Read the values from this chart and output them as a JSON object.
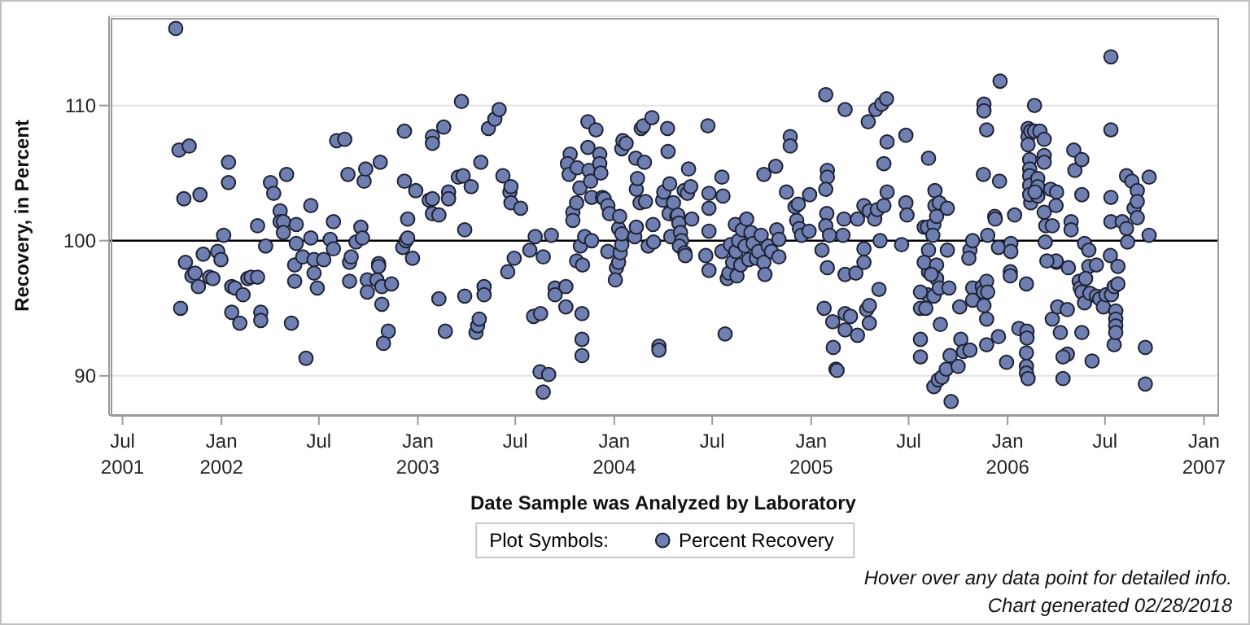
{
  "chart_data": {
    "type": "scatter",
    "xlabel": "Date Sample was Analyzed by Laboratory",
    "ylabel": "Recovery, in Percent",
    "legend_title": "Plot Symbols:",
    "legend": "bottom",
    "grid": "y",
    "marker": "circle",
    "annotations": [
      "Hover over any data point for detailed info.",
      "Chart generated 02/28/2018"
    ],
    "xlim": [
      "2001-06-06",
      "2007-01-26"
    ],
    "xticks": [
      {
        "value": "2001-07-01",
        "label": "Jul\n2001"
      },
      {
        "value": "2002-01-01",
        "label": "Jan\n2002"
      },
      {
        "value": "2002-07-01",
        "label": "Jul"
      },
      {
        "value": "2003-01-01",
        "label": "Jan\n2003"
      },
      {
        "value": "2003-07-01",
        "label": "Jul"
      },
      {
        "value": "2004-01-01",
        "label": "Jan\n2004"
      },
      {
        "value": "2004-07-01",
        "label": "Jul"
      },
      {
        "value": "2005-01-01",
        "label": "Jan\n2005"
      },
      {
        "value": "2005-07-01",
        "label": "Jul"
      },
      {
        "value": "2006-01-01",
        "label": "Jan\n2006"
      },
      {
        "value": "2006-07-01",
        "label": "Jul"
      },
      {
        "value": "2007-01-01",
        "label": "Jan\n2007"
      }
    ],
    "ylim": [
      87.1,
      116.6
    ],
    "yticks": [
      90,
      100,
      110
    ],
    "ref_lines": [
      {
        "axis": "y",
        "value": 100,
        "color": "#000000"
      }
    ],
    "x": [
      "2001-10-08",
      "2001-10-14",
      "2001-11-02",
      "2001-10-23",
      "2001-11-22",
      "2001-10-26",
      "2001-10-17",
      "2001-11-07",
      "2001-11-13",
      "2001-11-19",
      "2001-11-28",
      "2001-12-10",
      "2001-12-16",
      "2001-12-25",
      "2001-12-31",
      "2002-01-05",
      "2002-01-14",
      "2002-01-14",
      "2002-01-20",
      "2002-01-20",
      "2002-01-26",
      "2002-02-04",
      "2002-02-10",
      "2002-02-19",
      "2002-02-25",
      "2002-03-09",
      "2002-03-09",
      "2002-03-15",
      "2002-03-15",
      "2002-03-24",
      "2002-04-02",
      "2002-04-08",
      "2002-04-20",
      "2002-04-20",
      "2002-04-26",
      "2002-04-26",
      "2002-05-02",
      "2002-05-11",
      "2002-05-17",
      "2002-05-17",
      "2002-05-20",
      "2002-05-20",
      "2002-06-01",
      "2002-06-07",
      "2002-06-16",
      "2002-06-16",
      "2002-06-22",
      "2002-06-22",
      "2002-06-28",
      "2002-07-10",
      "2002-07-22",
      "2002-07-28",
      "2002-07-28",
      "2002-08-03",
      "2002-08-18",
      "2002-08-24",
      "2002-08-27",
      "2002-08-30",
      "2002-08-27",
      "2002-09-08",
      "2002-09-17",
      "2002-09-20",
      "2002-09-23",
      "2002-09-26",
      "2002-09-29",
      "2002-09-29",
      "2002-10-17",
      "2002-10-20",
      "2002-10-20",
      "2002-10-23",
      "2002-10-26",
      "2002-10-26",
      "2002-11-07",
      "2002-10-29",
      "2002-11-13",
      "2002-12-07",
      "2002-12-07",
      "2002-12-04",
      "2002-12-10",
      "2002-12-13",
      "2002-12-13",
      "2002-12-22",
      "2002-12-28",
      "2003-01-22",
      "2003-01-28",
      "2003-01-28",
      "2003-01-28",
      "2003-01-28",
      "2003-02-09",
      "2003-02-09",
      "2003-02-18",
      "2003-02-21",
      "2003-02-27",
      "2003-02-27",
      "2003-03-17",
      "2003-03-26",
      "2003-03-23",
      "2003-03-29",
      "2003-03-29",
      "2003-04-10",
      "2003-04-19",
      "2003-04-22",
      "2003-04-25",
      "2003-04-28",
      "2003-05-04",
      "2003-05-04",
      "2003-05-12",
      "2003-05-24",
      "2003-06-01",
      "2003-06-08",
      "2003-06-21",
      "2003-06-23",
      "2003-06-23",
      "2003-07-11",
      "2003-06-17",
      "2003-06-29",
      "2003-07-28",
      "2003-08-07",
      "2003-08-22",
      "2003-09-06",
      "2003-08-04",
      "2003-08-17",
      "2003-08-16",
      "2003-09-01",
      "2003-08-22",
      "2003-09-13",
      "2003-09-13",
      "2003-10-03",
      "2003-10-03",
      "2003-10-11",
      "2003-10-06",
      "2003-10-09",
      "2003-10-16",
      "2003-10-16",
      "2003-10-23",
      "2003-10-24",
      "2003-10-29",
      "2003-10-23",
      "2003-11-03",
      "2003-10-30",
      "2003-11-07",
      "2003-11-02",
      "2003-11-02",
      "2003-11-02",
      "2003-11-13",
      "2003-11-28",
      "2003-11-13",
      "2003-11-15",
      "2003-11-18",
      "2003-11-20",
      "2003-11-20",
      "2003-12-05",
      "2003-12-05",
      "2003-12-07",
      "2003-12-10",
      "2003-12-13",
      "2003-12-20",
      "2003-12-23",
      "2003-12-20",
      "2004-01-05",
      "2004-01-03",
      "2004-01-09",
      "2004-01-12",
      "2004-01-15",
      "2004-01-09",
      "2004-01-15",
      "2004-01-11",
      "2004-01-15",
      "2004-01-17",
      "2004-01-23",
      "2004-02-08",
      "2004-02-11",
      "2004-02-11",
      "2004-02-13",
      "2004-02-10",
      "2004-02-20",
      "2004-02-24",
      "2004-02-18",
      "2004-02-26",
      "2004-02-28",
      "2004-03-04",
      "2004-03-11",
      "2004-03-13",
      "2004-03-14",
      "2004-03-31",
      "2004-04-02",
      "2004-04-09",
      "2004-04-10",
      "2004-04-12",
      "2004-04-15",
      "2004-04-13",
      "2004-04-20",
      "2004-04-26",
      "2004-04-28",
      "2004-04-30",
      "2004-05-03",
      "2004-05-05",
      "2004-05-01",
      "2004-05-10",
      "2004-05-11",
      "2004-05-16",
      "2004-05-18",
      "2004-05-22",
      "2004-05-24",
      "2004-05-12",
      "2004-03-24",
      "2004-03-24",
      "2004-06-19",
      "2004-06-23",
      "2004-06-25",
      "2004-06-25",
      "2004-06-25",
      "2004-06-25",
      "2004-07-19",
      "2004-07-21",
      "2004-07-19",
      "2004-07-25",
      "2004-07-29",
      "2004-08-01",
      "2004-08-04",
      "2004-08-08",
      "2004-08-13",
      "2004-08-14",
      "2004-08-16",
      "2004-08-19",
      "2004-08-23",
      "2004-08-26",
      "2004-08-31",
      "2004-09-03",
      "2004-09-07",
      "2004-09-11",
      "2004-09-15",
      "2004-09-21",
      "2004-09-25",
      "2004-09-30",
      "2004-10-05",
      "2004-10-07",
      "2004-10-13",
      "2004-10-19",
      "2004-10-05",
      "2004-10-27",
      "2004-10-29",
      "2004-11-02",
      "2004-11-02",
      "2004-11-16",
      "2004-11-23",
      "2004-11-23",
      "2004-12-02",
      "2004-12-05",
      "2004-12-08",
      "2004-12-10",
      "2004-12-14",
      "2004-12-28",
      "2004-12-29",
      "2005-01-21",
      "2005-01-25",
      "2005-01-28",
      "2005-01-31",
      "2005-01-31",
      "2005-01-28",
      "2005-01-30",
      "2005-01-28",
      "2005-02-04",
      "2005-01-31",
      "2005-02-10",
      "2005-02-11",
      "2005-02-16",
      "2005-02-18",
      "2005-03-05",
      "2005-03-03",
      "2005-03-01",
      "2005-03-05",
      "2005-03-05",
      "2005-03-05",
      "2005-03-15",
      "2005-03-25",
      "2005-04-09",
      "2005-04-09",
      "2005-04-09",
      "2005-03-28",
      "2005-03-28",
      "2005-04-14",
      "2005-04-19",
      "2005-04-19",
      "2005-04-19",
      "2005-04-29",
      "2005-05-04",
      "2005-05-16",
      "2005-05-16",
      "2005-05-22",
      "2005-05-22",
      "2005-05-09",
      "2005-04-17",
      "2005-05-01",
      "2005-05-12",
      "2005-05-21",
      "2005-05-07",
      "2005-06-18",
      "2005-06-26",
      "2005-06-26",
      "2005-06-28",
      "2005-08-07",
      "2005-08-07",
      "2005-08-07",
      "2005-07-30",
      "2005-07-30",
      "2005-08-05",
      "2005-08-05",
      "2005-08-17",
      "2005-08-17",
      "2005-08-17",
      "2005-08-19",
      "2005-08-19",
      "2005-08-22",
      "2005-08-22",
      "2005-08-22",
      "2005-08-27",
      "2005-08-27",
      "2005-09-11",
      "2005-09-11",
      "2005-08-15",
      "2005-08-12",
      "2005-07-23",
      "2005-07-23",
      "2005-07-23",
      "2005-07-23",
      "2005-08-02",
      "2005-09-14",
      "2005-08-29",
      "2005-10-04",
      "2005-08-25",
      "2005-09-01",
      "2005-09-09",
      "2005-09-18",
      "2005-10-01",
      "2005-10-06",
      "2005-09-16",
      "2005-10-11",
      "2005-10-23",
      "2005-10-23",
      "2005-10-21",
      "2005-10-28",
      "2005-10-28",
      "2005-10-28",
      "2005-11-15",
      "2005-11-17",
      "2005-11-17",
      "2005-11-18",
      "2005-11-18",
      "2005-11-18",
      "2005-11-23",
      "2005-11-23",
      "2005-11-23",
      "2005-11-23",
      "2005-11-25",
      "2005-11-25",
      "2005-12-08",
      "2005-12-09",
      "2005-12-17",
      "2005-12-18",
      "2005-12-15",
      "2005-12-15",
      "2005-12-30",
      "2006-01-07",
      "2006-01-07",
      "2006-01-06",
      "2006-01-06",
      "2006-01-14",
      "2006-01-22",
      "2006-02-05",
      "2006-02-05",
      "2006-02-05",
      "2006-02-06",
      "2006-02-06",
      "2006-02-05",
      "2006-02-08",
      "2006-02-08",
      "2006-02-08",
      "2006-02-08",
      "2006-02-13",
      "2006-02-13",
      "2006-02-20",
      "2006-02-20",
      "2006-03-02",
      "2006-03-10",
      "2006-03-10",
      "2006-03-10",
      "2006-03-10",
      "2006-02-11",
      "2006-02-11",
      "2006-02-11",
      "2006-02-11",
      "2006-02-11",
      "2006-02-26",
      "2006-02-26",
      "2006-02-26",
      "2006-02-21",
      "2006-03-12",
      "2006-03-13",
      "2006-03-25",
      "2006-03-25",
      "2006-03-22",
      "2006-04-02",
      "2006-04-02",
      "2006-04-01",
      "2006-04-01",
      "2006-03-15",
      "2006-04-04",
      "2006-04-09",
      "2006-04-22",
      "2006-04-22",
      "2006-04-14",
      "2006-04-14",
      "2006-04-24",
      "2006-04-29",
      "2006-04-29",
      "2006-05-04",
      "2006-05-06",
      "2006-05-19",
      "2006-05-19",
      "2006-05-19",
      "2006-05-24",
      "2006-06-01",
      "2006-06-01",
      "2006-06-15",
      "2006-06-07",
      "2006-05-14",
      "2006-05-16",
      "2006-05-19",
      "2006-05-24",
      "2006-05-26",
      "2006-06-03",
      "2006-06-15",
      "2006-06-21",
      "2006-06-28",
      "2006-07-03",
      "2006-07-11",
      "2006-07-13",
      "2006-07-18",
      "2006-07-18",
      "2006-07-21",
      "2006-07-21",
      "2006-07-21",
      "2006-07-21",
      "2006-07-25",
      "2006-07-25",
      "2006-07-12",
      "2006-07-12",
      "2006-07-12",
      "2006-07-12",
      "2006-08-02",
      "2006-08-10",
      "2006-08-10",
      "2006-08-12",
      "2006-08-20",
      "2006-08-24",
      "2006-08-30",
      "2006-08-30",
      "2006-08-30",
      "2006-09-14",
      "2006-09-14",
      "2006-09-21",
      "2006-09-21"
    ],
    "series": [
      {
        "name": "Percent Recovery",
        "color": "#6f7fb2",
        "values": [
          115.7,
          106.7,
          107.0,
          103.1,
          103.4,
          98.4,
          95.0,
          97.4,
          97.6,
          96.6,
          99.0,
          97.3,
          97.2,
          99.2,
          98.6,
          100.4,
          105.8,
          104.3,
          96.6,
          94.7,
          96.5,
          93.9,
          96.0,
          97.2,
          97.3,
          97.3,
          101.1,
          94.7,
          94.1,
          99.6,
          104.3,
          103.5,
          102.2,
          101.4,
          101.4,
          100.6,
          104.9,
          93.9,
          98.2,
          97.0,
          101.2,
          99.8,
          98.8,
          91.3,
          102.6,
          100.2,
          98.6,
          97.6,
          96.5,
          98.6,
          100.1,
          101.4,
          99.4,
          107.4,
          107.5,
          104.9,
          98.4,
          98.8,
          97.0,
          99.9,
          101.0,
          100.2,
          104.4,
          105.3,
          97.1,
          96.2,
          97.1,
          98.3,
          98.1,
          105.8,
          96.6,
          95.3,
          93.3,
          92.4,
          96.8,
          108.1,
          104.4,
          99.5,
          100.0,
          101.6,
          100.2,
          98.7,
          103.7,
          103.0,
          107.7,
          107.2,
          103.1,
          102.0,
          101.9,
          95.7,
          108.4,
          93.3,
          103.6,
          103.1,
          104.7,
          104.8,
          110.3,
          100.8,
          95.9,
          104.0,
          93.2,
          93.7,
          94.2,
          105.8,
          96.6,
          96.0,
          108.3,
          109.0,
          109.7,
          104.8,
          103.6,
          104.0,
          102.8,
          102.4,
          97.7,
          98.7,
          99.3,
          100.3,
          98.8,
          100.4,
          94.4,
          94.6,
          90.3,
          90.1,
          88.8,
          96.5,
          96.0,
          96.6,
          95.1,
          106.4,
          105.7,
          104.9,
          102.1,
          101.5,
          102.8,
          105.4,
          103.9,
          98.5,
          98.2,
          99.6,
          100.3,
          94.6,
          92.7,
          91.5,
          108.8,
          108.2,
          106.9,
          105.2,
          104.4,
          103.2,
          100.0,
          106.4,
          105.7,
          105.0,
          103.2,
          103.1,
          102.6,
          102.0,
          99.2,
          98.0,
          97.1,
          98.4,
          99.1,
          99.7,
          100.9,
          100.5,
          101.8,
          106.8,
          107.4,
          107.2,
          100.3,
          101.0,
          103.8,
          104.6,
          106.1,
          108.3,
          108.5,
          102.8,
          105.8,
          102.9,
          99.6,
          109.1,
          101.2,
          99.9,
          103.0,
          103.6,
          108.3,
          106.6,
          102.0,
          100.3,
          104.2,
          102.8,
          101.8,
          101.9,
          101.3,
          100.6,
          100.0,
          99.6,
          103.7,
          99.1,
          103.5,
          105.3,
          104.0,
          101.6,
          98.9,
          92.2,
          91.9,
          98.9,
          108.5,
          103.5,
          102.4,
          100.7,
          97.8,
          104.7,
          103.3,
          99.2,
          93.1,
          97.2,
          97.6,
          99.7,
          98.4,
          101.2,
          99.2,
          97.4,
          100.0,
          98.2,
          100.8,
          99.6,
          101.6,
          98.6,
          100.6,
          99.8,
          98.7,
          99.2,
          100.4,
          98.4,
          97.5,
          99.6,
          99.2,
          104.9,
          105.5,
          100.8,
          100.1,
          98.8,
          103.6,
          107.7,
          107.0,
          102.5,
          101.5,
          102.7,
          100.9,
          100.4,
          100.7,
          103.4,
          99.3,
          95.0,
          110.8,
          105.2,
          104.7,
          103.8,
          102.0,
          101.1,
          100.4,
          98.0,
          94.0,
          92.1,
          90.5,
          90.4,
          109.7,
          101.6,
          100.4,
          97.5,
          94.6,
          93.4,
          94.4,
          97.6,
          98.4,
          99.4,
          102.6,
          101.6,
          93.0,
          94.9,
          93.9,
          95.2,
          102.2,
          101.6,
          102.3,
          102.6,
          105.7,
          103.6,
          107.3,
          100.0,
          108.8,
          109.7,
          110.1,
          110.5,
          96.4,
          99.7,
          102.8,
          107.8,
          101.9,
          106.1,
          99.3,
          97.7,
          101.0,
          98.4,
          101.0,
          96.0,
          101.2,
          95.9,
          89.2,
          103.7,
          102.6,
          101.8,
          98.2,
          97.2,
          102.8,
          96.5,
          102.4,
          99.3,
          100.4,
          97.5,
          96.2,
          95.0,
          92.7,
          91.4,
          95.0,
          96.5,
          93.8,
          95.1,
          89.7,
          89.9,
          90.5,
          88.1,
          90.7,
          92.7,
          91.5,
          91.8,
          91.9,
          99.3,
          98.7,
          100.0,
          96.5,
          95.6,
          96.6,
          96.2,
          104.9,
          95.2,
          110.1,
          109.6,
          97.0,
          94.2,
          92.3,
          108.2,
          96.2,
          100.4,
          101.8,
          101.6,
          104.4,
          111.8,
          99.5,
          92.9,
          91.0,
          99.8,
          99.2,
          97.7,
          97.4,
          101.9,
          93.5,
          96.8,
          91.7,
          90.7,
          93.3,
          92.8,
          90.2,
          89.8,
          108.3,
          107.7,
          107.1,
          108.1,
          102.8,
          110.0,
          108.1,
          108.1,
          107.5,
          106.3,
          105.8,
          102.1,
          106.0,
          105.3,
          104.8,
          104.1,
          103.4,
          104.6,
          104.0,
          103.3,
          103.6,
          99.9,
          101.1,
          101.1,
          94.2,
          103.8,
          103.6,
          98.4,
          102.6,
          98.5,
          98.5,
          95.1,
          93.2,
          94.9,
          91.6,
          91.4,
          89.8,
          98.0,
          101.4,
          100.8,
          106.7,
          105.2,
          106.0,
          103.4,
          93.2,
          99.8,
          99.3,
          98.1,
          98.2,
          91.1,
          97.0,
          96.5,
          96.2,
          95.4,
          97.2,
          96.1,
          95.9,
          95.7,
          95.1,
          96.0,
          98.9,
          96.0,
          96.6,
          92.3,
          94.8,
          94.2,
          93.7,
          93.2,
          98.1,
          96.8,
          113.6,
          108.2,
          103.2,
          101.4,
          101.4,
          100.9,
          104.8,
          99.9,
          104.4,
          102.4,
          103.7,
          102.9,
          101.7,
          92.1,
          89.4,
          104.7,
          100.4
        ]
      }
    ]
  }
}
